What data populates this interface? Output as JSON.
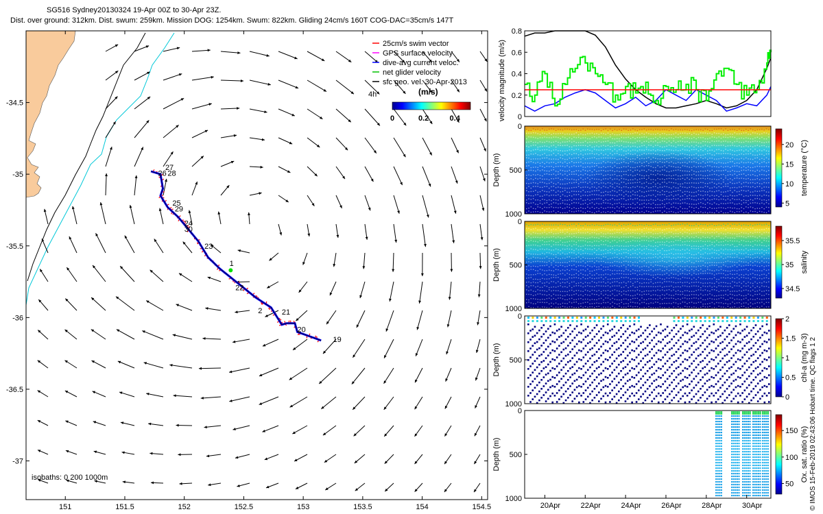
{
  "header": {
    "line1": "SG516 Sydney20130324 19-Apr 00Z to 30-Apr 23Z.",
    "line2": "Dist. over ground: 312km. Dist. swum: 259km. Mission DOG: 1254km. Swum: 822km. Gliding 24cm/s 160T COG-DAC=35cm/s 147T"
  },
  "credit": "© IMOS 15-Feb-2019 02:43:06 Hobart time. QC flags 1  2",
  "chart_data": [
    {
      "type": "map",
      "xticks": [
        "151",
        "151.5",
        "152",
        "152.5",
        "153",
        "153.5",
        "154",
        "154.5"
      ],
      "yticks": [
        "-34.5",
        "-35",
        "-35.5",
        "-36",
        "-36.5",
        "-37"
      ],
      "xlim": [
        150.67,
        154.55
      ],
      "ylim": [
        -37.27,
        -34.0
      ],
      "legend": {
        "placement": "top-right",
        "entries": [
          {
            "label": "25cm/s swim vector",
            "color": "#ff0000"
          },
          {
            "label": "GPS surface velocity",
            "color": "#ff00ff"
          },
          {
            "label": "dive-avg current veloc.",
            "color": "#0000ff"
          },
          {
            "label": "net glider velocity",
            "color": "#00c000"
          },
          {
            "label": "sfc geo. vel. 30-Apr-2013",
            "color": "#000000"
          }
        ]
      },
      "colorbar": {
        "label": "(m/s)",
        "ticks": [
          "0",
          "0.2",
          "0.4"
        ],
        "range": [
          0,
          0.5
        ],
        "side_label": "4h"
      },
      "isobaths_text": "isobaths: 0   200  1000m",
      "track_day_labels": [
        {
          "text": "27",
          "lon": 151.84,
          "lat": -34.97
        },
        {
          "text": "26",
          "lon": 151.78,
          "lat": -35.01
        },
        {
          "text": "28",
          "lon": 151.86,
          "lat": -35.01
        },
        {
          "text": "25",
          "lon": 151.9,
          "lat": -35.22
        },
        {
          "text": "29",
          "lon": 151.92,
          "lat": -35.26
        },
        {
          "text": "24",
          "lon": 152.0,
          "lat": -35.36
        },
        {
          "text": "30",
          "lon": 152.0,
          "lat": -35.4
        },
        {
          "text": "23",
          "lon": 152.17,
          "lat": -35.52
        },
        {
          "text": "1",
          "lon": 152.38,
          "lat": -35.64
        },
        {
          "text": "22",
          "lon": 152.43,
          "lat": -35.81
        },
        {
          "text": "2",
          "lon": 152.62,
          "lat": -35.97
        },
        {
          "text": "21",
          "lon": 152.82,
          "lat": -35.98
        },
        {
          "text": "20",
          "lon": 152.95,
          "lat": -36.1
        },
        {
          "text": "19",
          "lon": 153.25,
          "lat": -36.17
        }
      ],
      "track": [
        [
          151.72,
          -34.98
        ],
        [
          151.8,
          -35.0
        ],
        [
          151.82,
          -35.1
        ],
        [
          151.8,
          -35.15
        ],
        [
          151.86,
          -35.23
        ],
        [
          151.95,
          -35.3
        ],
        [
          152.05,
          -35.4
        ],
        [
          152.12,
          -35.47
        ],
        [
          152.2,
          -35.58
        ],
        [
          152.3,
          -35.66
        ],
        [
          152.45,
          -35.76
        ],
        [
          152.6,
          -35.86
        ],
        [
          152.73,
          -35.93
        ],
        [
          152.82,
          -36.05
        ],
        [
          152.86,
          -36.04
        ],
        [
          152.93,
          -36.04
        ],
        [
          152.95,
          -36.1
        ],
        [
          153.05,
          -36.13
        ],
        [
          153.15,
          -36.16
        ]
      ]
    },
    {
      "type": "line",
      "ylabel": "velocity magnitude (m/s)",
      "ylim": [
        0,
        0.8
      ],
      "yticks": [
        "0",
        "0.2",
        "0.4",
        "0.6",
        "0.8"
      ],
      "xlim": [
        19,
        31.2
      ],
      "reference_line": {
        "y": 0.25,
        "color": "#ff0000"
      },
      "series": [
        {
          "color": "#000000",
          "x": [
            19,
            19.5,
            20,
            20.5,
            21,
            21.5,
            22,
            22.5,
            23,
            23.5,
            24,
            24.5,
            25,
            25.5,
            26,
            26.5,
            27,
            27.5,
            28,
            28.5,
            29,
            29.5,
            30,
            30.5,
            31,
            31.2
          ],
          "y": [
            0.75,
            0.78,
            0.78,
            0.8,
            0.8,
            0.8,
            0.8,
            0.76,
            0.65,
            0.48,
            0.35,
            0.25,
            0.18,
            0.12,
            0.08,
            0.08,
            0.1,
            0.12,
            0.15,
            0.12,
            0.08,
            0.1,
            0.15,
            0.25,
            0.45,
            0.55
          ]
        },
        {
          "color": "#0000ff",
          "x": [
            19,
            19.5,
            20,
            20.5,
            21,
            21.5,
            22,
            22.5,
            23,
            23.5,
            24,
            24.5,
            25,
            25.5,
            26,
            26.5,
            27,
            27.5,
            28,
            28.5,
            29,
            29.5,
            30,
            30.5,
            31,
            31.2
          ],
          "y": [
            0.1,
            0.05,
            0.1,
            0.12,
            0.18,
            0.22,
            0.25,
            0.22,
            0.15,
            0.08,
            0.12,
            0.18,
            0.1,
            0.15,
            0.25,
            0.2,
            0.15,
            0.25,
            0.2,
            0.15,
            0.05,
            0.08,
            0.12,
            0.1,
            0.2,
            0.28
          ]
        },
        {
          "color": "#00ee00",
          "x": [
            19,
            19.5,
            20,
            20.5,
            21,
            21.5,
            22,
            22.5,
            23,
            23.5,
            24,
            24.5,
            25,
            25.5,
            26,
            26.5,
            27,
            27.5,
            28,
            28.5,
            29,
            29.5,
            30,
            30.5,
            31,
            31.2
          ],
          "y": [
            0.3,
            0.2,
            0.4,
            0.1,
            0.3,
            0.45,
            0.5,
            0.4,
            0.3,
            0.2,
            0.28,
            0.22,
            0.32,
            0.15,
            0.28,
            0.25,
            0.3,
            0.25,
            0.15,
            0.4,
            0.45,
            0.3,
            0.2,
            0.25,
            0.5,
            0.6
          ]
        }
      ]
    },
    {
      "type": "heatmap",
      "ylabel": "Depth (m)",
      "yticks": [
        "0",
        "500",
        "1000"
      ],
      "ylim": [
        0,
        1000
      ],
      "colorbar": {
        "label": "temperature (°C)",
        "ticks": [
          "5",
          "10",
          "15",
          "20"
        ],
        "range": [
          4,
          24
        ]
      }
    },
    {
      "type": "heatmap",
      "ylabel": "Depth (m)",
      "yticks": [
        "0",
        "500",
        "1000"
      ],
      "ylim": [
        0,
        1000
      ],
      "colorbar": {
        "label": "salinity",
        "ticks": [
          "34.5",
          "35",
          "35.5"
        ],
        "range": [
          34.3,
          35.8
        ]
      }
    },
    {
      "type": "scatter",
      "ylabel": "Depth (m)",
      "yticks": [
        "0",
        "500",
        "1000"
      ],
      "ylim": [
        0,
        1000
      ],
      "colorbar": {
        "label": "chl-a (mg m-3)",
        "ticks": [
          "0",
          "0.5",
          "1",
          "1.5",
          "2"
        ],
        "range": [
          0,
          2
        ]
      }
    },
    {
      "type": "scatter",
      "ylabel": "Depth (m)",
      "yticks": [
        "0",
        "500",
        "1000"
      ],
      "ylim": [
        0,
        1000
      ],
      "xlim": [
        19,
        31.2
      ],
      "xticks": [
        "20Apr",
        "22Apr",
        "24Apr",
        "26Apr",
        "28Apr",
        "30Apr"
      ],
      "colorbar": {
        "label": "Ox. sat. ratio (%)",
        "ticks": [
          "50",
          "100",
          "150"
        ],
        "range": [
          30,
          180
        ]
      }
    }
  ]
}
